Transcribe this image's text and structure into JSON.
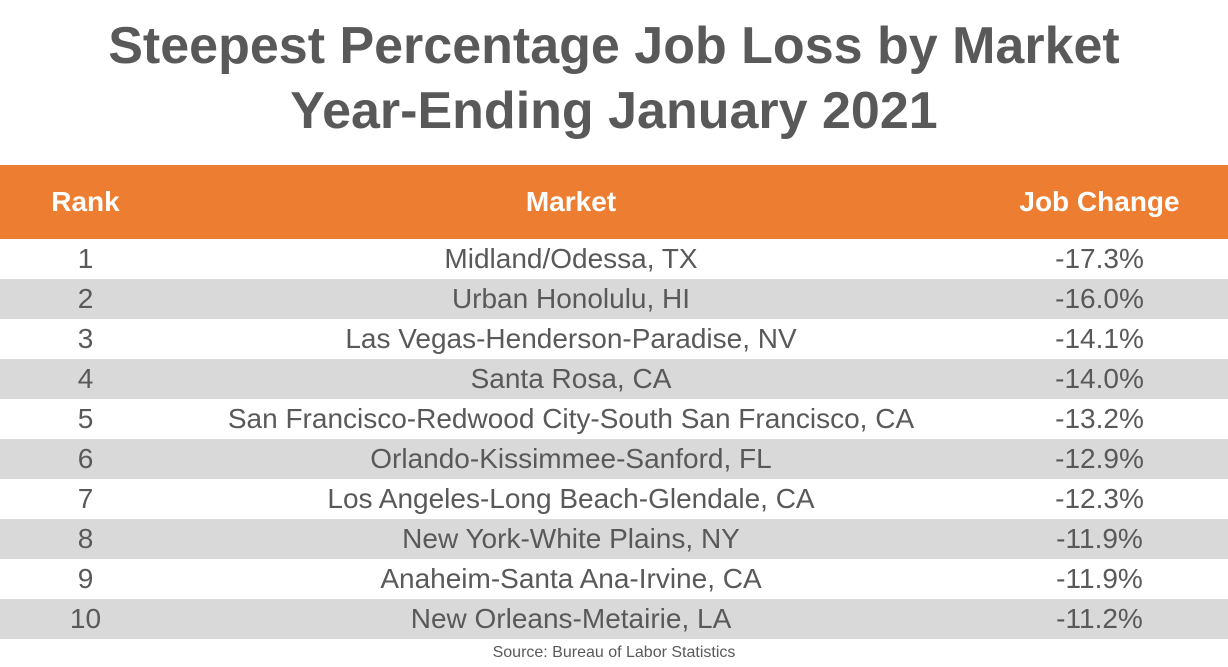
{
  "title_lines": [
    "Steepest Percentage Job Loss by Market",
    "Year-Ending January 2021"
  ],
  "colors": {
    "header_bg": "#ED7D31",
    "header_text": "#FFFFFF",
    "row_shade": "#D9D9D9",
    "text": "#595959"
  },
  "chart_data": {
    "type": "table",
    "title": "Steepest Percentage Job Loss by Market Year-Ending January 2021",
    "columns": [
      "Rank",
      "Market",
      "Job Change"
    ],
    "rows": [
      {
        "rank": "1",
        "market": "Midland/Odessa, TX",
        "change": "-17.3%"
      },
      {
        "rank": "2",
        "market": "Urban Honolulu, HI",
        "change": "-16.0%"
      },
      {
        "rank": "3",
        "market": "Las Vegas-Henderson-Paradise, NV",
        "change": "-14.1%"
      },
      {
        "rank": "4",
        "market": "Santa Rosa, CA",
        "change": "-14.0%"
      },
      {
        "rank": "5",
        "market": "San Francisco-Redwood City-South San Francisco, CA",
        "change": "-13.2%"
      },
      {
        "rank": "6",
        "market": "Orlando-Kissimmee-Sanford, FL",
        "change": "-12.9%"
      },
      {
        "rank": "7",
        "market": "Los Angeles-Long Beach-Glendale, CA",
        "change": "-12.3%"
      },
      {
        "rank": "8",
        "market": "New York-White Plains, NY",
        "change": "-11.9%"
      },
      {
        "rank": "9",
        "market": "Anaheim-Santa Ana-Irvine, CA",
        "change": "-11.9%"
      },
      {
        "rank": "10",
        "market": "New Orleans-Metairie, LA",
        "change": "-11.2%"
      }
    ],
    "source": "Source: Bureau of Labor Statistics"
  }
}
